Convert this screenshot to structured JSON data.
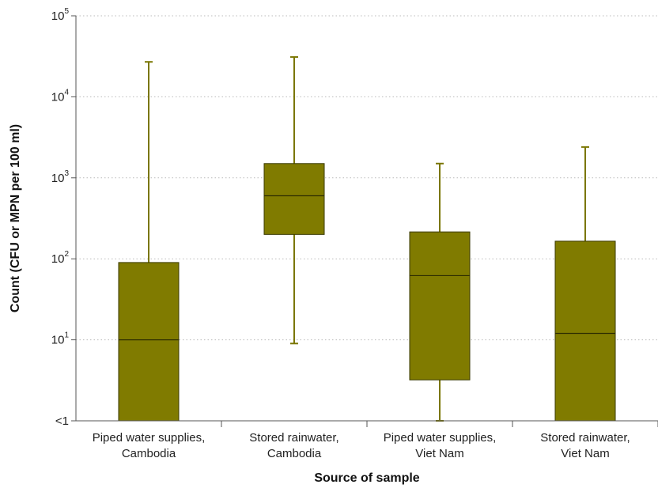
{
  "chart_data": {
    "type": "box",
    "title": "",
    "xlabel": "Source of sample",
    "ylabel": "Count (CFU or MPN per 100 ml)",
    "yscale": "log",
    "ylim": [
      1,
      100000
    ],
    "y_ticks": [
      {
        "value": 1,
        "base": "<1",
        "exp": ""
      },
      {
        "value": 10,
        "base": "10",
        "exp": "1"
      },
      {
        "value": 100,
        "base": "10",
        "exp": "2"
      },
      {
        "value": 1000,
        "base": "10",
        "exp": "3"
      },
      {
        "value": 10000,
        "base": "10",
        "exp": "4"
      },
      {
        "value": 100000,
        "base": "10",
        "exp": "5"
      }
    ],
    "grid": "horizontal dotted",
    "categories": [
      [
        "Piped water supplies,",
        "Cambodia"
      ],
      [
        "Stored rainwater,",
        "Cambodia"
      ],
      [
        "Piped water supplies,",
        "Viet Nam"
      ],
      [
        "Stored rainwater,",
        "Viet Nam"
      ]
    ],
    "boxes": [
      {
        "whisker_low": 1,
        "q1": 1,
        "median": 10,
        "q3": 90,
        "whisker_high": 27000
      },
      {
        "whisker_low": 9,
        "q1": 200,
        "median": 600,
        "q3": 1500,
        "whisker_high": 31000
      },
      {
        "whisker_low": 1,
        "q1": 3.2,
        "median": 62,
        "q3": 215,
        "whisker_high": 1500
      },
      {
        "whisker_low": 1,
        "q1": 1,
        "median": 12,
        "q3": 165,
        "whisker_high": 2400
      }
    ],
    "colors": {
      "box_fill": "#807b00",
      "box_stroke": "#3a3a00",
      "median_line": "#2e2e00",
      "whisker": "#7a7600",
      "axis": "#555555",
      "grid": "#bbbbbb"
    }
  }
}
